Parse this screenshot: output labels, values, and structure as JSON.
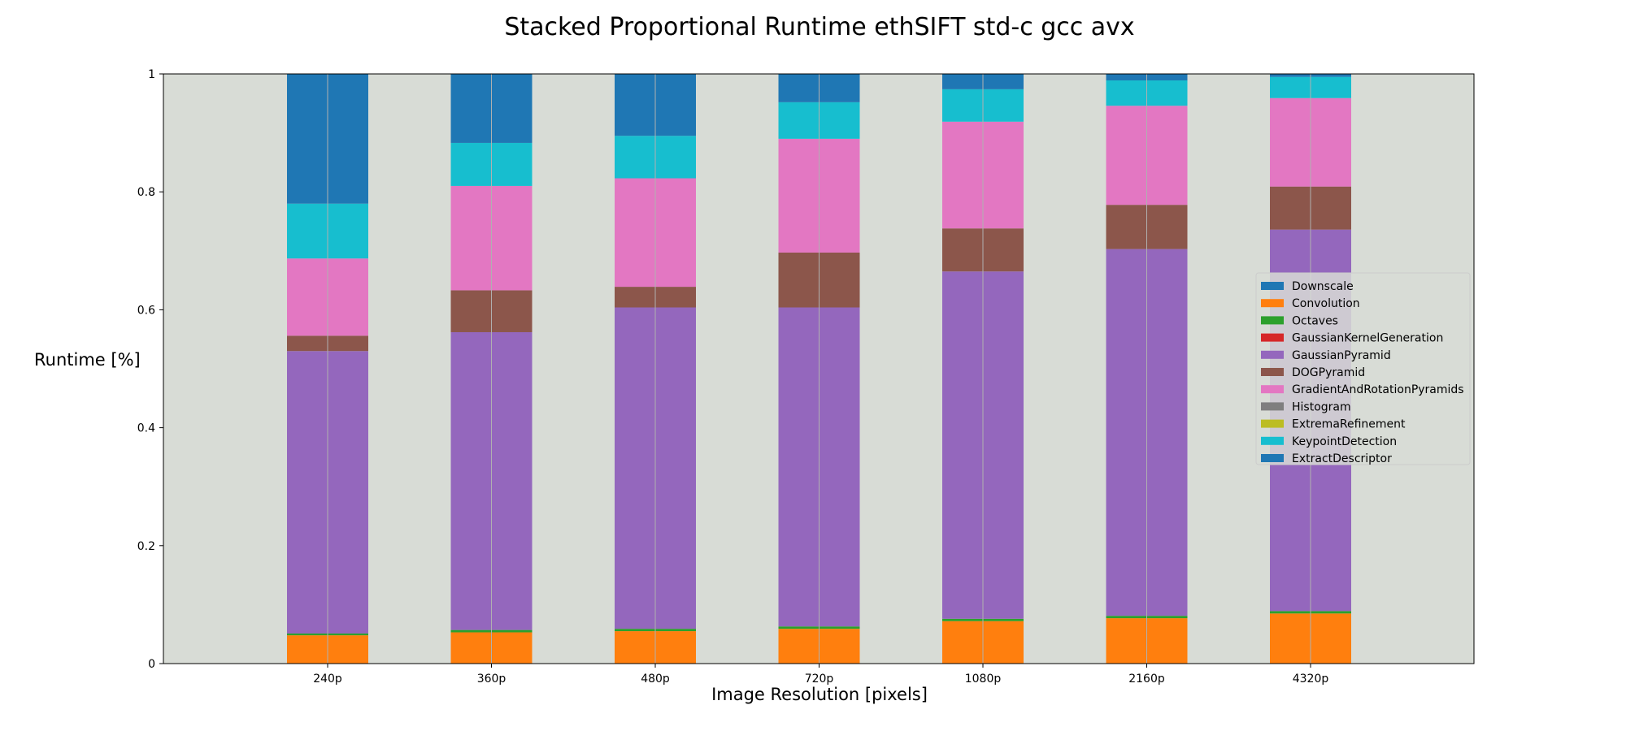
{
  "chart_data": {
    "type": "bar",
    "stacked": true,
    "title": "Stacked Proportional Runtime ethSIFT std-c gcc avx",
    "xlabel": "Image Resolution [pixels]",
    "ylabel": "Runtime [%]",
    "ylim": [
      0,
      1
    ],
    "yticks": [
      "0",
      "0.2",
      "0.4",
      "0.6",
      "0.8",
      "1"
    ],
    "ytick_values": [
      0,
      0.2,
      0.4,
      0.6,
      0.8,
      1
    ],
    "categories": [
      "240p",
      "360p",
      "480p",
      "720p",
      "1080p",
      "2160p",
      "4320p"
    ],
    "grid": "x",
    "legend_position": "right",
    "plot_background": "#d8dcd6",
    "series": [
      {
        "name": "Downscale",
        "color": "#1f77b4",
        "values": [
          0,
          0,
          0,
          0,
          0,
          0,
          0
        ]
      },
      {
        "name": "Convolution",
        "color": "#ff7f0e",
        "values": [
          0.048,
          0.053,
          0.055,
          0.059,
          0.072,
          0.077,
          0.085
        ]
      },
      {
        "name": "Octaves",
        "color": "#2ca02c",
        "values": [
          0.003,
          0.004,
          0.004,
          0.004,
          0.004,
          0.004,
          0.004
        ]
      },
      {
        "name": "GaussianKernelGeneration",
        "color": "#d62728",
        "values": [
          0,
          0,
          0,
          0,
          0,
          0,
          0
        ]
      },
      {
        "name": "GaussianPyramid",
        "color": "#9467bd",
        "values": [
          0.479,
          0.505,
          0.545,
          0.541,
          0.589,
          0.622,
          0.647
        ]
      },
      {
        "name": "DOGPyramid",
        "color": "#8c564b",
        "values": [
          0.026,
          0.071,
          0.035,
          0.093,
          0.073,
          0.075,
          0.073
        ]
      },
      {
        "name": "GradientAndRotationPyramids",
        "color": "#e377c2",
        "values": [
          0.131,
          0.177,
          0.184,
          0.193,
          0.181,
          0.168,
          0.15
        ]
      },
      {
        "name": "Histogram",
        "color": "#7f7f7f",
        "values": [
          0,
          0,
          0,
          0,
          0,
          0,
          0
        ]
      },
      {
        "name": "ExtremaRefinement",
        "color": "#bcbd22",
        "values": [
          0,
          0,
          0,
          0,
          0,
          0,
          0
        ]
      },
      {
        "name": "KeypointDetection",
        "color": "#17becf",
        "values": [
          0.093,
          0.073,
          0.072,
          0.062,
          0.055,
          0.043,
          0.036
        ]
      },
      {
        "name": "ExtractDescriptor",
        "color": "#1f77b4",
        "values": [
          0.22,
          0.117,
          0.105,
          0.048,
          0.026,
          0.011,
          0.005
        ]
      }
    ]
  }
}
